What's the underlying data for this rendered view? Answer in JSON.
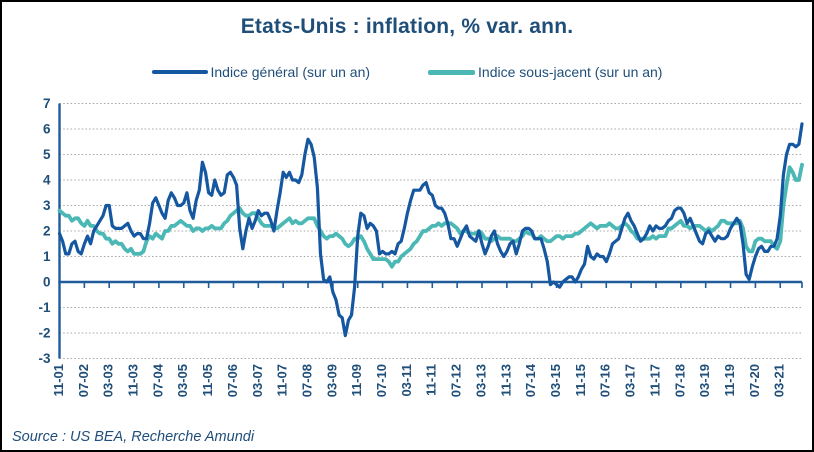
{
  "title": "Etats-Unis : inflation, % var. ann.",
  "legend": {
    "items": [
      {
        "label": "Indice général (sur un an)",
        "color": "#1557a0"
      },
      {
        "label": "Indice sous-jacent (sur un an)",
        "color": "#4bb8b5"
      }
    ]
  },
  "source": {
    "text": "Source : US BEA, Recherche Amundi"
  },
  "colors": {
    "text_navy": "#1f4e79",
    "axis": "#1f5c99",
    "grid": "#a6a6a6",
    "series_general": "#1557a0",
    "series_sous_jacent": "#4bb8b5",
    "border": "#000000",
    "background": "#ffffff"
  },
  "chart_data": {
    "type": "line",
    "title": "Etats-Unis : inflation, % var. ann.",
    "x_unit": "month",
    "x_start": "2001-11",
    "x_end": "2021-10",
    "x_tick_interval_months": 8,
    "x_tick_labels": [
      "11-01",
      "07-02",
      "03-03",
      "11-03",
      "07-04",
      "03-05",
      "11-05",
      "07-06",
      "03-07",
      "11-07",
      "07-08",
      "03-09",
      "11-09",
      "07-10",
      "03-11",
      "11-11",
      "07-12",
      "03-13",
      "11-13",
      "07-14",
      "03-15",
      "11-15",
      "07-16",
      "03-17",
      "11-17",
      "07-18",
      "03-19",
      "11-19",
      "07-20",
      "03-21"
    ],
    "ylim": [
      -3,
      7
    ],
    "y_ticks": [
      7,
      6,
      5,
      4,
      3,
      2,
      1,
      0,
      -1,
      -2,
      -3
    ],
    "grid": "horizontal-dotted",
    "legend_position": "top",
    "series": [
      {
        "name": "Indice général (sur un an)",
        "color": "#1557a0",
        "values": [
          1.9,
          1.6,
          1.1,
          1.1,
          1.5,
          1.6,
          1.2,
          1.1,
          1.5,
          1.8,
          1.5,
          2.0,
          2.2,
          2.4,
          2.6,
          3.0,
          3.0,
          2.2,
          2.1,
          2.1,
          2.1,
          2.2,
          2.3,
          2.0,
          1.8,
          1.9,
          1.9,
          1.7,
          1.7,
          2.3,
          3.1,
          3.3,
          3.0,
          2.7,
          2.5,
          3.2,
          3.5,
          3.3,
          3.0,
          3.0,
          3.1,
          3.5,
          2.8,
          2.5,
          3.2,
          3.6,
          4.7,
          4.3,
          3.5,
          3.4,
          4.0,
          3.6,
          3.4,
          3.5,
          4.2,
          4.3,
          4.1,
          3.8,
          2.1,
          1.3,
          2.0,
          2.5,
          2.1,
          2.4,
          2.8,
          2.6,
          2.7,
          2.7,
          2.4,
          2.0,
          2.8,
          3.5,
          4.3,
          4.1,
          4.3,
          4.0,
          4.0,
          3.9,
          4.2,
          5.0,
          5.6,
          5.4,
          4.9,
          3.7,
          1.1,
          0.1,
          0.0,
          0.2,
          -0.4,
          -0.7,
          -1.3,
          -1.4,
          -2.1,
          -1.5,
          -1.3,
          -0.2,
          1.8,
          2.7,
          2.6,
          2.1,
          2.3,
          2.2,
          2.0,
          1.1,
          1.2,
          1.1,
          1.1,
          1.2,
          1.1,
          1.5,
          1.6,
          2.1,
          2.7,
          3.2,
          3.6,
          3.6,
          3.6,
          3.8,
          3.9,
          3.5,
          3.4,
          3.0,
          2.9,
          2.9,
          2.7,
          2.3,
          1.7,
          1.7,
          1.4,
          1.7,
          2.0,
          2.2,
          1.8,
          1.7,
          1.6,
          2.0,
          1.5,
          1.1,
          1.4,
          1.8,
          2.0,
          1.5,
          1.2,
          1.0,
          1.2,
          1.5,
          1.6,
          1.1,
          1.5,
          2.0,
          2.1,
          2.1,
          2.0,
          1.7,
          1.7,
          1.7,
          1.3,
          0.8,
          -0.1,
          0.0,
          -0.1,
          -0.2,
          0.0,
          0.1,
          0.2,
          0.2,
          0.0,
          0.2,
          0.5,
          0.7,
          1.4,
          1.0,
          0.9,
          1.1,
          1.0,
          1.0,
          0.8,
          1.1,
          1.5,
          1.6,
          1.7,
          2.1,
          2.5,
          2.7,
          2.4,
          2.2,
          1.9,
          1.6,
          1.7,
          1.9,
          2.2,
          2.0,
          2.2,
          2.1,
          2.1,
          2.2,
          2.4,
          2.5,
          2.8,
          2.9,
          2.9,
          2.7,
          2.3,
          2.5,
          2.2,
          1.9,
          1.6,
          1.5,
          1.9,
          2.0,
          1.8,
          1.6,
          1.8,
          1.7,
          1.7,
          1.8,
          2.1,
          2.3,
          2.5,
          2.3,
          1.5,
          0.3,
          0.1,
          0.6,
          1.0,
          1.3,
          1.4,
          1.2,
          1.2,
          1.4,
          1.4,
          1.7,
          2.6,
          4.2,
          5.0,
          5.4,
          5.4,
          5.3,
          5.4,
          6.2
        ]
      },
      {
        "name": "Indice sous-jacent (sur un an)",
        "color": "#4bb8b5",
        "values": [
          2.8,
          2.7,
          2.6,
          2.6,
          2.4,
          2.5,
          2.5,
          2.3,
          2.2,
          2.4,
          2.2,
          2.2,
          2.0,
          1.9,
          1.9,
          1.7,
          1.7,
          1.5,
          1.6,
          1.5,
          1.5,
          1.3,
          1.2,
          1.3,
          1.1,
          1.1,
          1.1,
          1.2,
          1.6,
          1.8,
          1.7,
          1.9,
          1.8,
          1.7,
          2.0,
          2.0,
          2.2,
          2.2,
          2.3,
          2.4,
          2.3,
          2.2,
          2.2,
          2.0,
          2.1,
          2.1,
          2.0,
          2.1,
          2.1,
          2.2,
          2.1,
          2.1,
          2.1,
          2.3,
          2.4,
          2.6,
          2.7,
          2.8,
          2.9,
          2.7,
          2.6,
          2.6,
          2.7,
          2.7,
          2.5,
          2.3,
          2.2,
          2.2,
          2.2,
          2.1,
          2.1,
          2.2,
          2.3,
          2.4,
          2.5,
          2.3,
          2.4,
          2.3,
          2.3,
          2.4,
          2.5,
          2.5,
          2.5,
          2.2,
          2.0,
          1.8,
          1.7,
          1.8,
          1.8,
          1.9,
          1.8,
          1.7,
          1.5,
          1.4,
          1.5,
          1.7,
          1.7,
          1.8,
          1.6,
          1.3,
          1.1,
          0.9,
          0.9,
          0.9,
          0.9,
          0.9,
          0.8,
          0.6,
          0.8,
          0.8,
          1.0,
          1.1,
          1.2,
          1.3,
          1.5,
          1.6,
          1.8,
          2.0,
          2.0,
          2.1,
          2.2,
          2.2,
          2.3,
          2.2,
          2.3,
          2.3,
          2.3,
          2.2,
          2.1,
          1.9,
          2.0,
          2.0,
          1.9,
          1.9,
          1.9,
          2.0,
          1.9,
          1.7,
          1.7,
          1.6,
          1.7,
          1.8,
          1.7,
          1.7,
          1.7,
          1.7,
          1.6,
          1.6,
          1.7,
          1.8,
          2.0,
          1.9,
          1.9,
          1.7,
          1.7,
          1.8,
          1.7,
          1.6,
          1.6,
          1.7,
          1.8,
          1.8,
          1.7,
          1.8,
          1.8,
          1.8,
          1.9,
          1.9,
          2.0,
          2.1,
          2.2,
          2.3,
          2.2,
          2.1,
          2.2,
          2.2,
          2.2,
          2.3,
          2.2,
          2.1,
          2.1,
          2.2,
          2.3,
          2.2,
          2.0,
          1.9,
          1.7,
          1.7,
          1.7,
          1.7,
          1.7,
          1.8,
          1.7,
          1.8,
          1.8,
          1.8,
          2.1,
          2.1,
          2.2,
          2.3,
          2.4,
          2.2,
          2.2,
          2.1,
          2.2,
          2.2,
          2.2,
          2.1,
          2.0,
          2.1,
          2.0,
          2.1,
          2.2,
          2.4,
          2.4,
          2.3,
          2.3,
          2.3,
          2.3,
          2.4,
          2.1,
          1.4,
          1.2,
          1.2,
          1.6,
          1.7,
          1.7,
          1.6,
          1.6,
          1.6,
          1.4,
          1.3,
          1.6,
          3.0,
          3.8,
          4.5,
          4.3,
          4.0,
          4.0,
          4.6
        ]
      }
    ]
  }
}
